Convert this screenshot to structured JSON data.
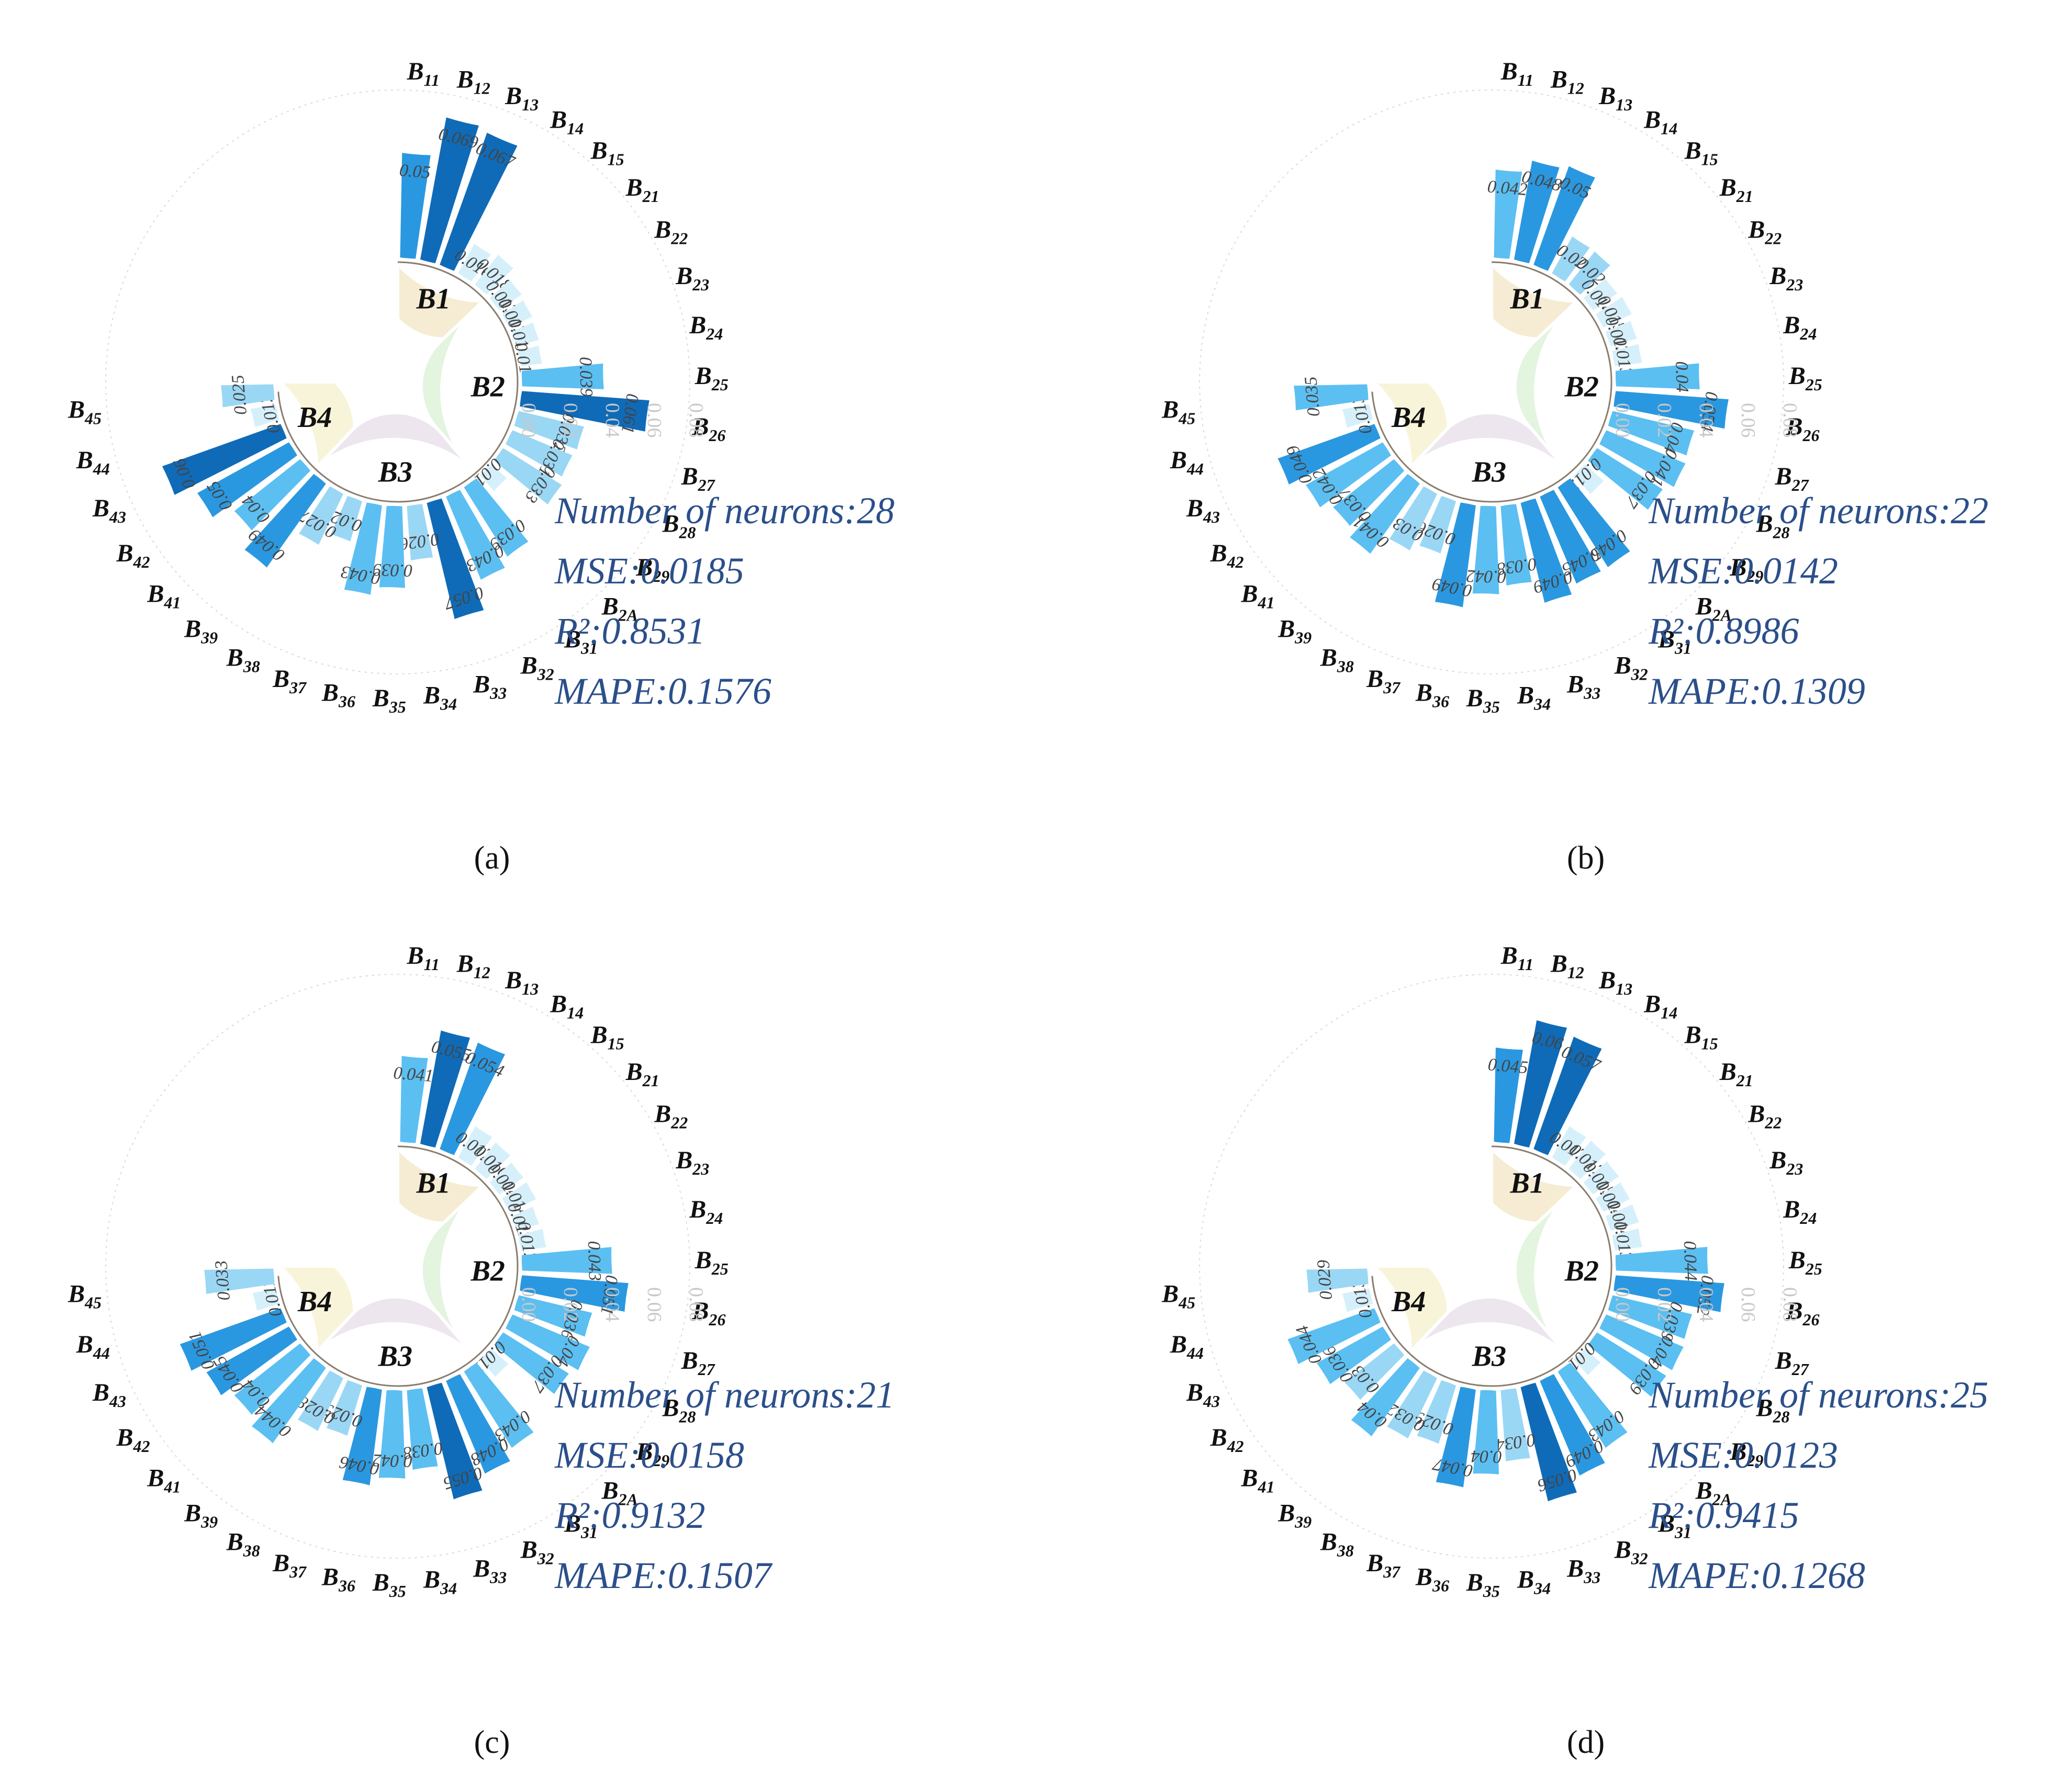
{
  "chart_data": [
    {
      "type": "bar",
      "panel": "a",
      "categories": [
        "B11",
        "B12",
        "B13",
        "B14",
        "B15",
        "B21",
        "B22",
        "B23",
        "B24",
        "B25",
        "B26",
        "B27",
        "B28",
        "B29",
        "B2A",
        "B31",
        "B32",
        "B33",
        "B34",
        "B35",
        "B36",
        "B37",
        "B38",
        "B39",
        "B41",
        "B42",
        "B43",
        "B44",
        "B45"
      ],
      "groups": [
        "B1",
        "B2",
        "B3",
        "B4"
      ],
      "values": [
        0.05,
        0.069,
        0.067,
        0.016,
        0.018,
        0.013,
        0.012,
        0.011,
        0.01,
        0.039,
        0.061,
        0.032,
        0.031,
        0.033,
        0.01,
        0.039,
        0.043,
        0.057,
        0.026,
        0.039,
        0.043,
        0.02,
        0.027,
        0.049,
        0.04,
        0.05,
        0.06,
        0.012,
        0.025
      ],
      "axis_ticks": [
        "0.00",
        "0.02",
        "0.04",
        "0.06",
        "0.08"
      ],
      "ylim": [
        0,
        0.08
      ],
      "metrics": [
        "Number of neurons:28",
        "MSE:0.0185",
        "R²:0.8531",
        "MAPE:0.1576"
      ],
      "caption": "(a)"
    },
    {
      "type": "bar",
      "panel": "b",
      "categories": [
        "B11",
        "B12",
        "B13",
        "B14",
        "B15",
        "B21",
        "B22",
        "B23",
        "B24",
        "B25",
        "B26",
        "B27",
        "B28",
        "B29",
        "B2A",
        "B31",
        "B32",
        "B33",
        "B34",
        "B35",
        "B36",
        "B37",
        "B38",
        "B39",
        "B41",
        "B42",
        "B43",
        "B44",
        "B45"
      ],
      "groups": [
        "B1",
        "B2",
        "B3",
        "B4"
      ],
      "values": [
        0.042,
        0.048,
        0.05,
        0.02,
        0.02,
        0.014,
        0.015,
        0.013,
        0.013,
        0.04,
        0.054,
        0.04,
        0.041,
        0.037,
        0.012,
        0.045,
        0.045,
        0.049,
        0.038,
        0.042,
        0.049,
        0.026,
        0.03,
        0.041,
        0.037,
        0.042,
        0.049,
        0.013,
        0.035
      ],
      "axis_ticks": [
        "0.00",
        "0.02",
        "0.04",
        "0.06",
        "0.08"
      ],
      "ylim": [
        0,
        0.08
      ],
      "metrics": [
        "Number of neurons:22",
        "MSE:0.0142",
        "R²:0.8986",
        "MAPE:0.1309"
      ],
      "caption": "(b)"
    },
    {
      "type": "bar",
      "panel": "c",
      "categories": [
        "B11",
        "B12",
        "B13",
        "B14",
        "B15",
        "B21",
        "B22",
        "B23",
        "B24",
        "B25",
        "B26",
        "B27",
        "B28",
        "B29",
        "B2A",
        "B31",
        "B32",
        "B33",
        "B34",
        "B35",
        "B36",
        "B37",
        "B38",
        "B39",
        "B41",
        "B42",
        "B43",
        "B44",
        "B45"
      ],
      "groups": [
        "B1",
        "B2",
        "B3",
        "B4"
      ],
      "values": [
        0.041,
        0.055,
        0.054,
        0.017,
        0.016,
        0.014,
        0.014,
        0.011,
        0.012,
        0.043,
        0.051,
        0.036,
        0.04,
        0.037,
        0.011,
        0.043,
        0.048,
        0.055,
        0.038,
        0.042,
        0.046,
        0.025,
        0.028,
        0.044,
        0.04,
        0.045,
        0.051,
        0.011,
        0.033
      ],
      "axis_ticks": [
        "0.00",
        "0.02",
        "0.04",
        "0.06",
        "0.08"
      ],
      "ylim": [
        0,
        0.08
      ],
      "metrics": [
        "Number of neurons:21",
        "MSE:0.0158",
        "R²:0.9132",
        "MAPE:0.1507"
      ],
      "caption": "(c)"
    },
    {
      "type": "bar",
      "panel": "d",
      "categories": [
        "B11",
        "B12",
        "B13",
        "B14",
        "B15",
        "B21",
        "B22",
        "B23",
        "B24",
        "B25",
        "B26",
        "B27",
        "B28",
        "B29",
        "B2A",
        "B31",
        "B32",
        "B33",
        "B34",
        "B35",
        "B36",
        "B37",
        "B38",
        "B39",
        "B41",
        "B42",
        "B43",
        "B44",
        "B45"
      ],
      "groups": [
        "B1",
        "B2",
        "B3",
        "B4"
      ],
      "values": [
        0.045,
        0.06,
        0.057,
        0.017,
        0.017,
        0.015,
        0.014,
        0.014,
        0.013,
        0.044,
        0.052,
        0.039,
        0.04,
        0.039,
        0.01,
        0.043,
        0.049,
        0.056,
        0.034,
        0.04,
        0.047,
        0.029,
        0.032,
        0.04,
        0.03,
        0.036,
        0.044,
        0.013,
        0.029
      ],
      "axis_ticks": [
        "0.00",
        "0.02",
        "0.04",
        "0.06",
        "0.08"
      ],
      "ylim": [
        0,
        0.08
      ],
      "metrics": [
        "Number of neurons:25",
        "MSE:0.0123",
        "R²:0.9415",
        "MAPE:0.1268"
      ],
      "caption": "(d)"
    }
  ],
  "colors": {
    "bar_scale": [
      "#d6f0fb",
      "#9ad7f5",
      "#5bbff2",
      "#2a98e0",
      "#0f6bb8"
    ],
    "group_fills": [
      "#f5ecd3",
      "#e3f4df",
      "#ede6ef",
      "#f7f4d9"
    ],
    "metric_text": "#2b4f8a",
    "tick_text": "#c8c8c8",
    "gridline": "#d9d9d9"
  }
}
